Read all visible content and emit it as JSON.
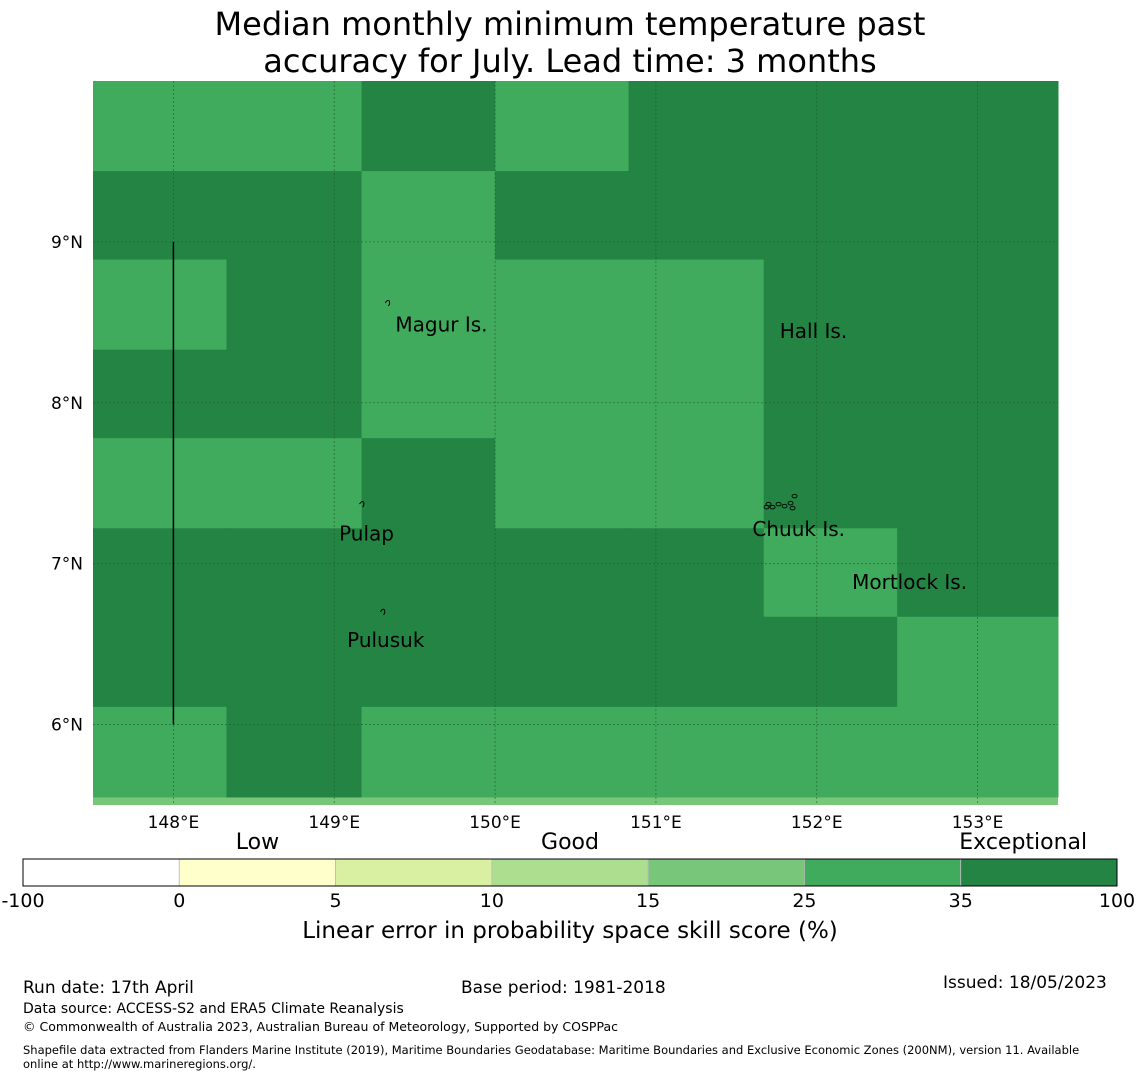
{
  "title_line1": "Median monthly minimum temperature past",
  "title_line2": "accuracy for July. Lead time: 3 months",
  "map": {
    "lon_range": [
      147.5,
      153.5
    ],
    "lat_range": [
      5.5,
      10.0
    ],
    "lon_ticks": [
      {
        "value": 148,
        "label": "148°E"
      },
      {
        "value": 149,
        "label": "149°E"
      },
      {
        "value": 150,
        "label": "150°E"
      },
      {
        "value": 151,
        "label": "151°E"
      },
      {
        "value": 152,
        "label": "152°E"
      },
      {
        "value": 153,
        "label": "153°E"
      }
    ],
    "lat_ticks": [
      {
        "value": 9,
        "label": "9°N"
      },
      {
        "value": 8,
        "label": "8°N"
      },
      {
        "value": 7,
        "label": "7°N"
      },
      {
        "value": 6,
        "label": "6°N"
      }
    ],
    "grid_lon_edges": [
      147.5,
      148.33,
      149.17,
      150.0,
      150.83,
      151.67,
      152.5,
      153.5
    ],
    "grid_lat_edges": [
      10.0,
      9.44,
      8.89,
      8.33,
      7.78,
      7.22,
      6.67,
      6.11,
      5.55
    ],
    "category_grid": [
      [
        5,
        5,
        6,
        5,
        6,
        6,
        6
      ],
      [
        6,
        6,
        5,
        6,
        6,
        6,
        6
      ],
      [
        5,
        6,
        5,
        5,
        5,
        6,
        6
      ],
      [
        6,
        6,
        5,
        5,
        5,
        6,
        6
      ],
      [
        5,
        5,
        6,
        5,
        5,
        6,
        6
      ],
      [
        6,
        6,
        6,
        6,
        6,
        5,
        6
      ],
      [
        6,
        6,
        6,
        6,
        6,
        6,
        5
      ],
      [
        5,
        6,
        5,
        5,
        5,
        5,
        5
      ]
    ],
    "bottom_strip_color": "#78c679",
    "boundary_line": {
      "lon": 148.0,
      "lat_from": 6.0,
      "lat_to": 9.0
    },
    "places": [
      {
        "name": "Magur Is.",
        "lon": 149.38,
        "lat": 8.48
      },
      {
        "name": "Hall Is.",
        "lon": 151.77,
        "lat": 8.44
      },
      {
        "name": "Pulap",
        "lon": 149.03,
        "lat": 7.18
      },
      {
        "name": "Chuuk Is.",
        "lon": 151.6,
        "lat": 7.21
      },
      {
        "name": "Mortlock Is.",
        "lon": 152.22,
        "lat": 6.88
      },
      {
        "name": "Pulusuk",
        "lon": 149.08,
        "lat": 6.52
      }
    ]
  },
  "colorbar": {
    "categories": [
      {
        "label": "Low",
        "at": 1.5
      },
      {
        "label": "Good",
        "at": 3.5
      },
      {
        "label": "Exceptional",
        "at": 6.4
      }
    ],
    "colors": [
      "#ffffff",
      "#ffffcc",
      "#d9f0a3",
      "#addd8e",
      "#78c679",
      "#41ab5d",
      "#238443"
    ],
    "ticks": [
      "-100",
      "0",
      "5",
      "10",
      "15",
      "25",
      "35",
      "100"
    ],
    "label": "Linear error in probability space skill score (%)"
  },
  "footer": {
    "run_date": "Run date: 17th April",
    "base_period": "Base period: 1981-2018",
    "issued": "Issued: 18/05/2023",
    "data_source": "Data source: ACCESS-S2 and ERA5 Climate Reanalysis",
    "copyright": "© Commonwealth of Australia 2023, Australian Bureau of Meteorology, Supported by COSPPac",
    "shapefile_line1": "Shapefile data extracted from Flanders Marine Institute (2019), Maritime Boundaries Geodatabase: Maritime Boundaries and Exclusive Economic Zones (200NM), version 11. Available",
    "shapefile_line2": "online at http://www.marineregions.org/."
  }
}
